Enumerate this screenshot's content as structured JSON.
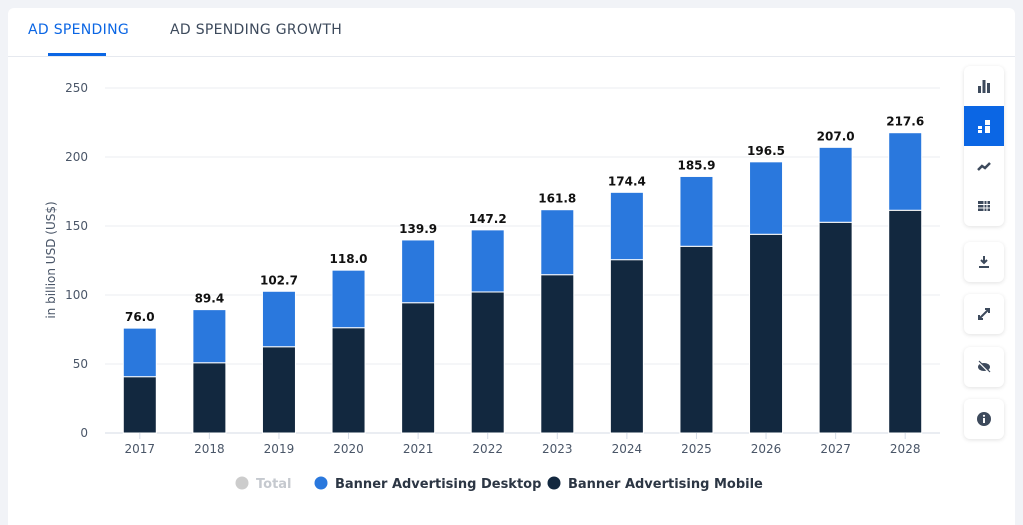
{
  "tabs": [
    {
      "label": "AD SPENDING",
      "active": true
    },
    {
      "label": "AD SPENDING GROWTH",
      "active": false
    }
  ],
  "sidebar": {
    "icons": [
      "bar-chart-icon",
      "stacked-bar-icon",
      "line-chart-icon",
      "table-icon",
      "download-icon",
      "expand-icon",
      "hide-icon",
      "info-icon"
    ],
    "active": "stacked-bar-icon"
  },
  "colors": {
    "accent": "#0b66e4",
    "desktop": "#2a78dd",
    "mobile": "#12283f",
    "total": "#cccccc"
  },
  "chart_data": {
    "type": "bar",
    "stacked": true,
    "ylabel": "in billion USD (US$)",
    "ylim": [
      0,
      250
    ],
    "yticks": [
      0,
      50,
      100,
      150,
      200,
      250
    ],
    "grid": true,
    "legend_position": "bottom",
    "categories": [
      "2017",
      "2018",
      "2019",
      "2020",
      "2021",
      "2022",
      "2023",
      "2024",
      "2025",
      "2026",
      "2027",
      "2028"
    ],
    "totals": [
      "76.0",
      "89.4",
      "102.7",
      "118.0",
      "139.9",
      "147.2",
      "161.8",
      "174.4",
      "185.9",
      "196.5",
      "207.0",
      "217.6"
    ],
    "series": [
      {
        "name": "Total",
        "hidden": true,
        "color": "#cccccc"
      },
      {
        "name": "Banner Advertising Desktop",
        "color": "#2a78dd",
        "values": [
          35.2,
          38.5,
          40.2,
          41.7,
          45.5,
          45.0,
          47.1,
          48.8,
          50.6,
          52.5,
          54.3,
          56.2
        ]
      },
      {
        "name": "Banner Advertising Mobile",
        "color": "#12283f",
        "values": [
          40.8,
          50.9,
          62.5,
          76.3,
          94.4,
          102.2,
          114.7,
          125.6,
          135.3,
          144.0,
          152.7,
          161.4
        ]
      }
    ]
  }
}
